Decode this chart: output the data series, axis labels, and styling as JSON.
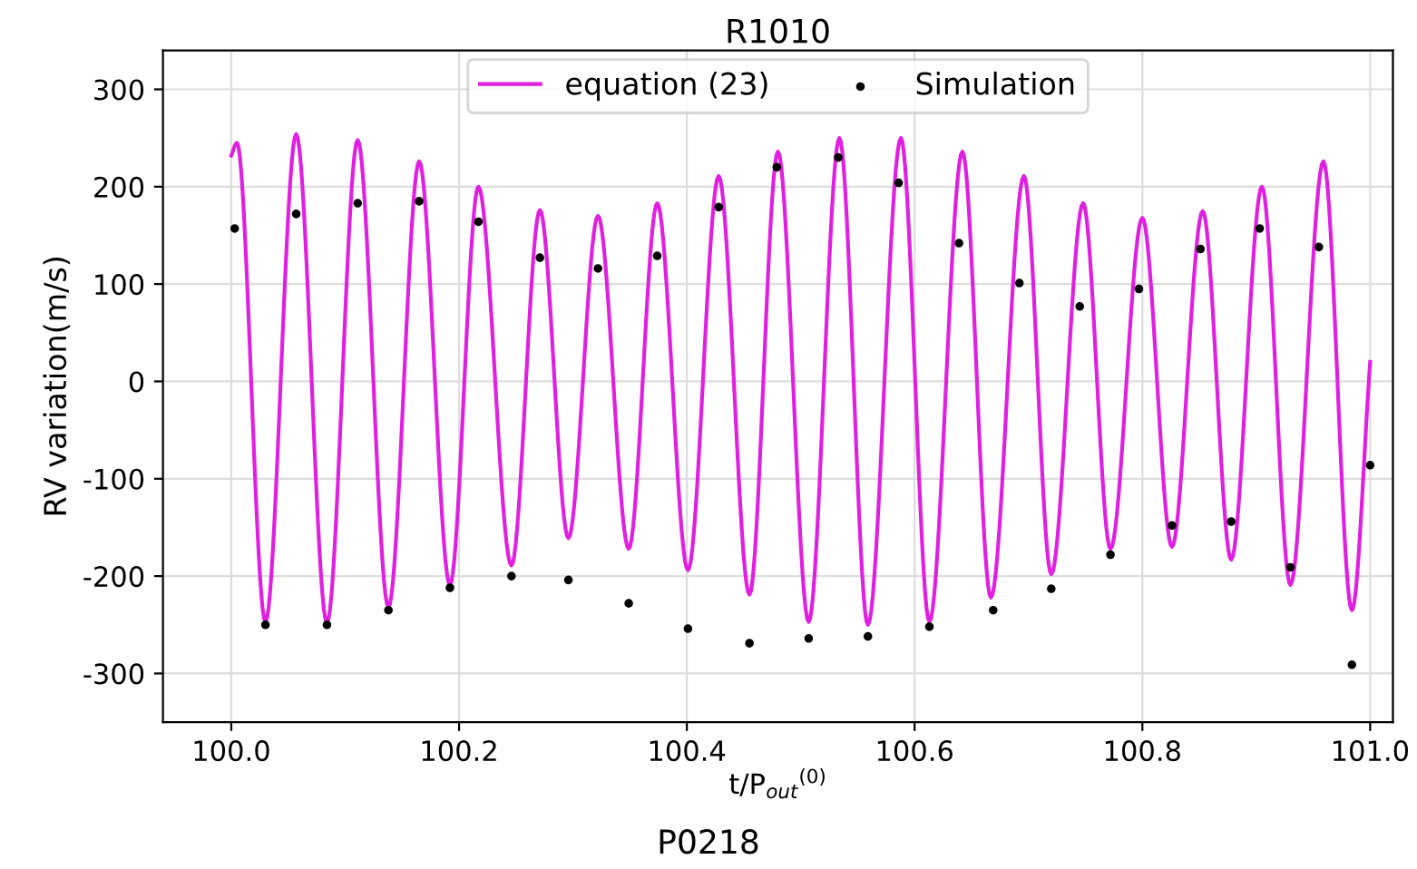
{
  "chart_data": {
    "type": "line",
    "title": "R1010",
    "xlabel": "t/P$_{out}$$^{(0)}$",
    "ylabel": "RV variation(m/s)",
    "xlim": [
      99.94,
      101.02
    ],
    "ylim": [
      -350,
      340
    ],
    "xticks": [
      {
        "value": 100.0,
        "label": "100.0"
      },
      {
        "value": 100.2,
        "label": "100.2"
      },
      {
        "value": 100.4,
        "label": "100.4"
      },
      {
        "value": 100.6,
        "label": "100.6"
      },
      {
        "value": 100.8,
        "label": "100.8"
      },
      {
        "value": 101.0,
        "label": "101.0"
      }
    ],
    "yticks": [
      -300,
      -200,
      -100,
      0,
      100,
      200,
      300
    ],
    "grid": true,
    "legend": "top",
    "series": [
      {
        "name": "equation (23)",
        "color": "#e020e0",
        "marker": "none",
        "line_style": "solid",
        "x": [
          100.0,
          100.005,
          100.03,
          100.057,
          100.084,
          100.111,
          100.138,
          100.165,
          100.192,
          100.217,
          100.246,
          100.271,
          100.296,
          100.322,
          100.349,
          100.374,
          100.401,
          100.428,
          100.455,
          100.48,
          100.507,
          100.534,
          100.559,
          100.588,
          100.613,
          100.642,
          100.667,
          100.696,
          100.72,
          100.748,
          100.772,
          100.8,
          100.826,
          100.853,
          100.878,
          100.905,
          100.93,
          100.959,
          100.984,
          101.0
        ],
        "values": [
          232,
          245,
          -247,
          254,
          -248,
          248,
          -232,
          226,
          -209,
          200,
          -189,
          176,
          -161,
          170,
          -172,
          183,
          -194,
          211,
          -219,
          236,
          -247,
          250,
          -250,
          250,
          -247,
          236,
          -222,
          211,
          -198,
          183,
          -172,
          168,
          -170,
          175,
          -183,
          200,
          -209,
          226,
          -235,
          20
        ]
      },
      {
        "name": "Simulation",
        "type": "scatter",
        "color": "#000000",
        "marker": "circle",
        "x": [
          100.003,
          100.03,
          100.057,
          100.084,
          100.111,
          100.138,
          100.165,
          100.192,
          100.217,
          100.246,
          100.271,
          100.296,
          100.322,
          100.349,
          100.374,
          100.401,
          100.428,
          100.455,
          100.479,
          100.507,
          100.533,
          100.559,
          100.586,
          100.613,
          100.639,
          100.669,
          100.692,
          100.72,
          100.745,
          100.772,
          100.797,
          100.826,
          100.851,
          100.878,
          100.903,
          100.93,
          100.955,
          100.984,
          101.0
        ],
        "values": [
          157,
          -250,
          172,
          -250,
          183,
          -235,
          185,
          -212,
          164,
          -200,
          127,
          -204,
          116,
          -228,
          129,
          -254,
          179,
          -269,
          220,
          -264,
          230,
          -262,
          204,
          -252,
          142,
          -235,
          101,
          -213,
          77,
          -178,
          95,
          -148,
          136,
          -144,
          157,
          -191,
          138,
          -291,
          -86
        ]
      }
    ],
    "annotations": [
      "P0218"
    ]
  }
}
